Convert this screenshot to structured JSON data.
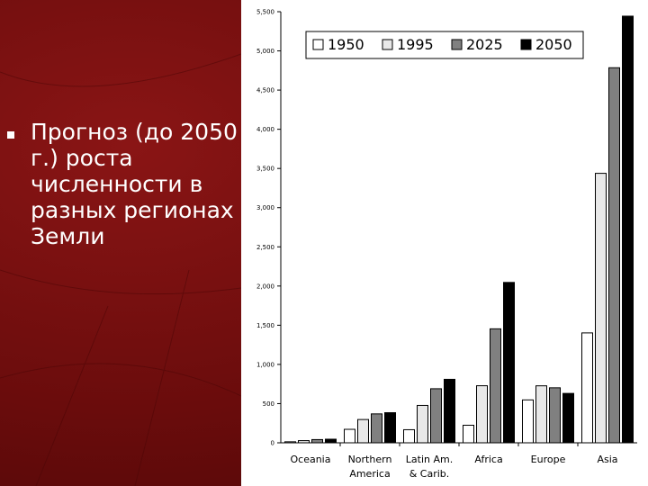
{
  "slide": {
    "text": "Прогноз (до 2050 г.) роста численности в разных регионах Земли",
    "background_color": "#6e0d0d",
    "bullet_icon": "square-bullet-icon"
  },
  "chart_data": {
    "type": "bar",
    "title": "",
    "xlabel": "",
    "ylabel": "",
    "ylim": [
      0,
      5500
    ],
    "yticks": [
      "0",
      "500",
      "1,000",
      "1,500",
      "2,000",
      "2,500",
      "3,000",
      "3,500",
      "4,000",
      "4,500",
      "5,000",
      "5,500"
    ],
    "ytick_values": [
      0,
      500,
      1000,
      1500,
      2000,
      2500,
      3000,
      3500,
      4000,
      4500,
      5000,
      5500
    ],
    "categories": [
      "Oceania",
      "Northern America",
      "Latin Am. & Carib.",
      "Africa",
      "Europe",
      "Asia"
    ],
    "category_lines": [
      [
        "Oceania"
      ],
      [
        "Northern",
        "America"
      ],
      [
        "Latin Am.",
        "& Carib."
      ],
      [
        "Africa"
      ],
      [
        "Europe"
      ],
      [
        "Asia"
      ]
    ],
    "series": [
      {
        "name": "1950",
        "color": "#ffffff",
        "values": [
          13,
          172,
          167,
          224,
          547,
          1402
        ]
      },
      {
        "name": "1995",
        "color": "#e8e8e8",
        "values": [
          28,
          297,
          477,
          728,
          727,
          3438
        ]
      },
      {
        "name": "2025",
        "color": "#808080",
        "values": [
          41,
          369,
          690,
          1454,
          702,
          4785
        ]
      },
      {
        "name": "2050",
        "color": "#000000",
        "values": [
          46,
          384,
          810,
          2046,
          630,
          5443
        ]
      }
    ],
    "legend": "top-right",
    "grid": false
  }
}
